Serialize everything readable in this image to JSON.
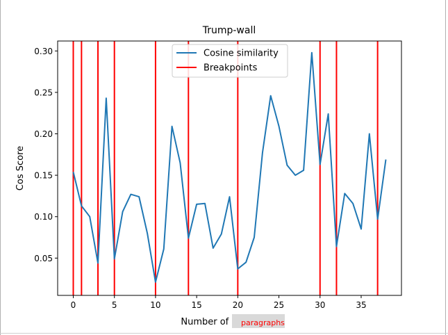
{
  "chart_data": {
    "type": "line",
    "title": "Trump-wall",
    "xlabel": "Number of sentences",
    "xlabel_overlay": "paragraphs",
    "ylabel": "Cos Score",
    "xlim": [
      -1.9,
      39.9
    ],
    "ylim": [
      0.005,
      0.312
    ],
    "xticks": [
      0,
      5,
      10,
      15,
      20,
      25,
      30,
      35
    ],
    "yticks": [
      0.05,
      0.1,
      0.15,
      0.2,
      0.25,
      0.3
    ],
    "ytick_labels": [
      "0.05",
      "0.10",
      "0.15",
      "0.20",
      "0.25",
      "0.30"
    ],
    "grid": false,
    "legend": {
      "position": "top-center"
    },
    "series": [
      {
        "name": "Cosine similarity",
        "color": "#1f77b4",
        "x": [
          0,
          1,
          2,
          3,
          4,
          5,
          6,
          7,
          8,
          9,
          10,
          11,
          12,
          13,
          14,
          15,
          16,
          17,
          18,
          19,
          20,
          21,
          22,
          23,
          24,
          25,
          26,
          27,
          28,
          29,
          30,
          31,
          32,
          33,
          34,
          35,
          36,
          37,
          38
        ],
        "values": [
          0.154,
          0.113,
          0.1,
          0.044,
          0.243,
          0.049,
          0.106,
          0.127,
          0.124,
          0.08,
          0.021,
          0.061,
          0.209,
          0.165,
          0.074,
          0.115,
          0.116,
          0.062,
          0.079,
          0.124,
          0.037,
          0.045,
          0.075,
          0.177,
          0.246,
          0.209,
          0.162,
          0.15,
          0.156,
          0.298,
          0.163,
          0.224,
          0.064,
          0.128,
          0.116,
          0.085,
          0.2,
          0.097,
          0.169
        ]
      },
      {
        "name": "Breakpoints",
        "color": "#ff0000",
        "type": "vlines",
        "x": [
          0,
          1,
          3,
          5,
          10,
          14,
          20,
          30,
          32,
          37
        ]
      }
    ]
  }
}
